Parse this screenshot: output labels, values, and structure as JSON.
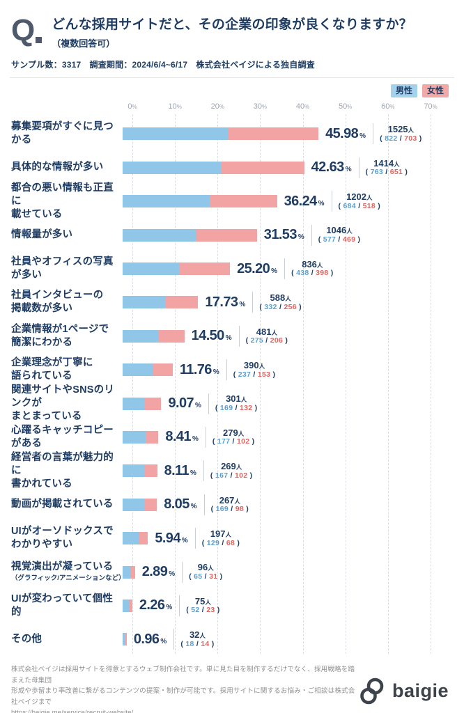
{
  "header": {
    "q_mark": "Q",
    "title": "どんな採用サイトだと、その企業の印象が良くなりますか？",
    "subtitle": "（複数回答可）",
    "sample_info": "サンプル数：3317　調査期間：2024/6/4~6/17　株式会社ベイジによる独自調査"
  },
  "legend": {
    "male_label": "男性",
    "female_label": "女性"
  },
  "chart_data": {
    "type": "bar",
    "orientation": "horizontal",
    "stacked": true,
    "title": "どんな採用サイトだと、その企業の印象が良くなりますか？（複数回答可）",
    "total_sample": 3317,
    "series_names": [
      "男性",
      "女性"
    ],
    "axis": {
      "min": 0,
      "max": 70,
      "ticks": [
        0,
        10,
        20,
        30,
        40,
        50,
        60,
        70
      ],
      "unit": "%"
    },
    "grid": "dashed-vertical",
    "legend_position": "top-right",
    "unit_percent": "%",
    "unit_people": "人",
    "paren_open": "(",
    "paren_close": ")",
    "slash": "/",
    "rows": [
      {
        "label_lines": [
          "募集要項がすぐに見つかる"
        ],
        "percent": "45.98",
        "total": 1525,
        "male": 822,
        "female": 703
      },
      {
        "label_lines": [
          "具体的な情報が多い"
        ],
        "percent": "42.63",
        "total": 1414,
        "male": 763,
        "female": 651
      },
      {
        "label_lines": [
          "都合の悪い情報も正直に",
          "載せている"
        ],
        "percent": "36.24",
        "total": 1202,
        "male": 684,
        "female": 518
      },
      {
        "label_lines": [
          "情報量が多い"
        ],
        "percent": "31.53",
        "total": 1046,
        "male": 577,
        "female": 469
      },
      {
        "label_lines": [
          "社員やオフィスの写真が多い"
        ],
        "percent": "25.20",
        "total": 836,
        "male": 438,
        "female": 398
      },
      {
        "label_lines": [
          "社員インタビューの",
          "掲載数が多い"
        ],
        "percent": "17.73",
        "total": 588,
        "male": 332,
        "female": 256
      },
      {
        "label_lines": [
          "企業情報が1ページで",
          "簡潔にわかる"
        ],
        "percent": "14.50",
        "total": 481,
        "male": 275,
        "female": 206
      },
      {
        "label_lines": [
          "企業理念が丁寧に",
          "語られている"
        ],
        "percent": "11.76",
        "total": 390,
        "male": 237,
        "female": 153
      },
      {
        "label_lines": [
          "関連サイトやSNSのリンクが",
          "まとまっている"
        ],
        "percent": "9.07",
        "total": 301,
        "male": 169,
        "female": 132
      },
      {
        "label_lines": [
          "心躍るキャッチコピーがある"
        ],
        "percent": "8.41",
        "total": 279,
        "male": 177,
        "female": 102
      },
      {
        "label_lines": [
          "経営者の言葉が魅力的に",
          "書かれている"
        ],
        "percent": "8.11",
        "total": 269,
        "male": 167,
        "female": 102
      },
      {
        "label_lines": [
          "動画が掲載されている"
        ],
        "percent": "8.05",
        "total": 267,
        "male": 169,
        "female": 98
      },
      {
        "label_lines": [
          "UIがオーソドックスで",
          "わかりやすい"
        ],
        "percent": "5.94",
        "total": 197,
        "male": 129,
        "female": 68
      },
      {
        "label_lines": [
          "視覚演出が凝っている"
        ],
        "sublabel": "（グラフィック/アニメーションなど）",
        "percent": "2.89",
        "total": 96,
        "male": 65,
        "female": 31
      },
      {
        "label_lines": [
          "UIが変わっていて個性的"
        ],
        "percent": "2.26",
        "total": 75,
        "male": 52,
        "female": 23
      },
      {
        "label_lines": [
          "その他"
        ],
        "percent": "0.96",
        "total": 32,
        "male": 18,
        "female": 14
      }
    ]
  },
  "colors": {
    "navy": "#1F3D63",
    "q_mark": "#4E5A6C",
    "male_bar": "#90C7E8",
    "female_bar": "#F1A4A3",
    "male_badge": "#A4D2EC",
    "female_badge": "#F1A9A8",
    "male_text": "#5B9FD0",
    "female_text": "#E2635E",
    "axis_text": "#9CA4B1",
    "grid_line": "#D9DDE3",
    "divider": "#E4E7EB",
    "vdivider": "#C9CFD8",
    "footer_text": "#8E9093",
    "logo": "#3D434A"
  },
  "footer": {
    "description_lines": [
      "株式会社ベイジは採用サイトを得意とするウェブ制作会社です。単に見た目を制作するだけでなく、採用戦略を踏まえた母集団",
      "形成や歩留まり率改善に繋がるコンテンツの提案・制作が可能です。採用サイトに関するお悩み・ご相談は株式会社ベイジまで"
    ],
    "url": "https://baigie.me/service/recruit-website/",
    "logo_text": "baigie"
  }
}
